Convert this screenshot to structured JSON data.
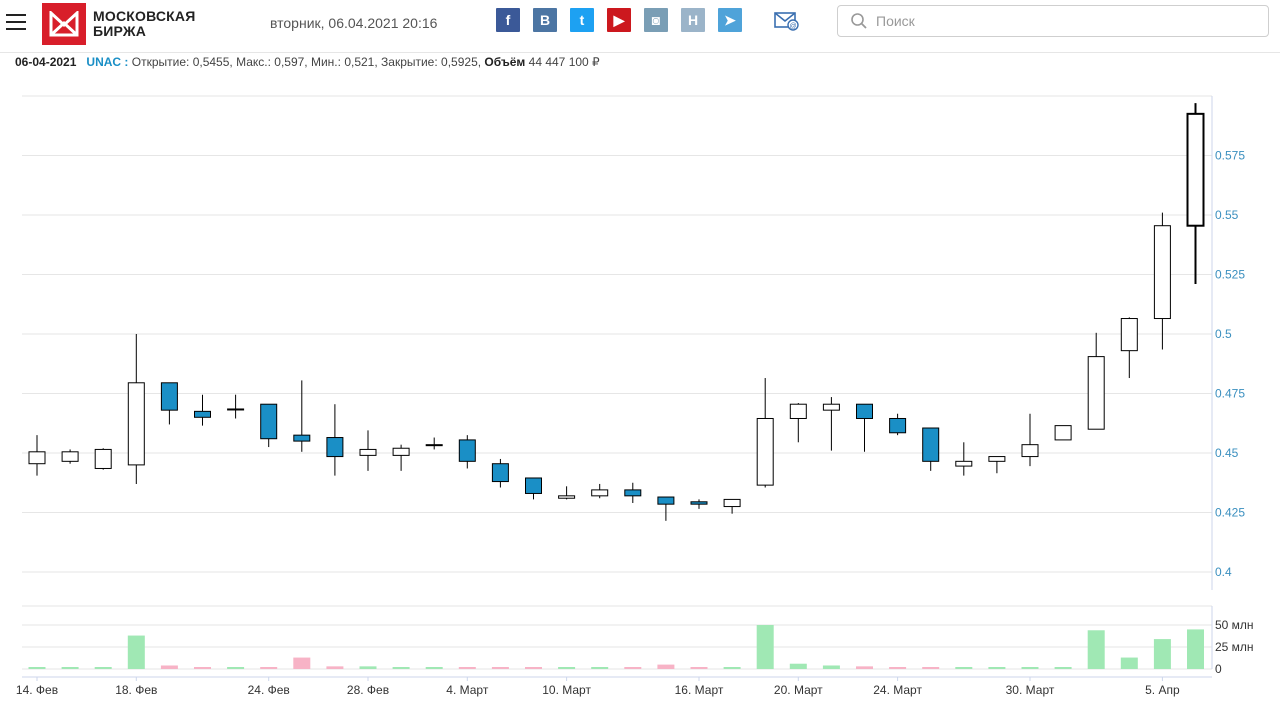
{
  "header": {
    "logo_line1": "МОСКОВСКАЯ",
    "logo_line2": "БИРЖА",
    "date": "вторник, 06.04.2021 20:16",
    "search_placeholder": "Поиск",
    "socials": [
      {
        "name": "facebook-icon",
        "glyph": "f",
        "color": "#3b5998"
      },
      {
        "name": "vkontakte-icon",
        "glyph": "B",
        "color": "#4c75a3"
      },
      {
        "name": "twitter-icon",
        "glyph": "t",
        "color": "#1da1f2"
      },
      {
        "name": "youtube-icon",
        "glyph": "▶",
        "color": "#cc181e"
      },
      {
        "name": "instagram-icon",
        "glyph": "◙",
        "color": "#7a9eb5"
      },
      {
        "name": "habr-icon",
        "glyph": "H",
        "color": "#9bb4c9"
      },
      {
        "name": "telegram-icon",
        "glyph": "➤",
        "color": "#4fa3d9"
      }
    ]
  },
  "info": {
    "date": "06-04-2021",
    "ticker": "UNAC :",
    "open_label": "Открытие:",
    "open": "0,5455",
    "high_label": "Макс.:",
    "high": "0,597",
    "low_label": "Мин.:",
    "low": "0,521",
    "close_label": "Закрытие:",
    "close": "0,5925",
    "volume_label": "Объём",
    "volume": "44 447 100 ₽"
  },
  "chart_data": {
    "type": "candlestick",
    "y_ticks": [
      "0.4",
      "0.425",
      "0.45",
      "0.475",
      "0.5",
      "0.525",
      "0.55",
      "0.575"
    ],
    "ylim": [
      0.4,
      0.6
    ],
    "volume_ticks": [
      "0",
      "25 млн",
      "50 млн"
    ],
    "volume_ylim": [
      0,
      60
    ],
    "x_labels": [
      {
        "label": "14. Фев",
        "index": 0
      },
      {
        "label": "18. Фев",
        "index": 3
      },
      {
        "label": "24. Фев",
        "index": 7
      },
      {
        "label": "28. Фев",
        "index": 10
      },
      {
        "label": "4. Март",
        "index": 13
      },
      {
        "label": "10. Март",
        "index": 16
      },
      {
        "label": "16. Март",
        "index": 20
      },
      {
        "label": "20. Март",
        "index": 23
      },
      {
        "label": "24. Март",
        "index": 26
      },
      {
        "label": "30. Март",
        "index": 30
      },
      {
        "label": "5. Апр",
        "index": 34
      }
    ],
    "up_color": "#ffffff",
    "down_color": "#1a8fc6",
    "volume_up_color": "#a0e8b4",
    "volume_down_color": "#f7b3c6",
    "candles": [
      {
        "o": 0.4455,
        "h": 0.4575,
        "l": 0.4405,
        "c": 0.4505,
        "v": 1
      },
      {
        "o": 0.4465,
        "h": 0.4515,
        "l": 0.4455,
        "c": 0.4505,
        "v": 1
      },
      {
        "o": 0.4435,
        "h": 0.452,
        "l": 0.443,
        "c": 0.4515,
        "v": 1
      },
      {
        "o": 0.445,
        "h": 0.5,
        "l": 0.437,
        "c": 0.4795,
        "v": 38
      },
      {
        "o": 0.4795,
        "h": 0.4795,
        "l": 0.462,
        "c": 0.468,
        "v": 4
      },
      {
        "o": 0.4675,
        "h": 0.4745,
        "l": 0.4615,
        "c": 0.465,
        "v": 1
      },
      {
        "o": 0.4685,
        "h": 0.4745,
        "l": 0.4645,
        "c": 0.4685,
        "v": 1
      },
      {
        "o": 0.4705,
        "h": 0.4705,
        "l": 0.4525,
        "c": 0.456,
        "v": 0
      },
      {
        "o": 0.4575,
        "h": 0.4805,
        "l": 0.4505,
        "c": 0.455,
        "v": 13
      },
      {
        "o": 0.4565,
        "h": 0.4705,
        "l": 0.4405,
        "c": 0.4485,
        "v": 3
      },
      {
        "o": 0.449,
        "h": 0.4595,
        "l": 0.4425,
        "c": 0.4515,
        "v": 3
      },
      {
        "o": 0.449,
        "h": 0.4535,
        "l": 0.4425,
        "c": 0.452,
        "v": 2
      },
      {
        "o": 0.4535,
        "h": 0.4565,
        "l": 0.4515,
        "c": 0.4535,
        "v": 0
      },
      {
        "o": 0.4555,
        "h": 0.4575,
        "l": 0.4435,
        "c": 0.4465,
        "v": 1
      },
      {
        "o": 0.4455,
        "h": 0.4475,
        "l": 0.4355,
        "c": 0.438,
        "v": 1
      },
      {
        "o": 0.4395,
        "h": 0.4395,
        "l": 0.4305,
        "c": 0.433,
        "v": 1
      },
      {
        "o": 0.431,
        "h": 0.436,
        "l": 0.4305,
        "c": 0.432,
        "v": 0
      },
      {
        "o": 0.432,
        "h": 0.437,
        "l": 0.431,
        "c": 0.4345,
        "v": 1
      },
      {
        "o": 0.4345,
        "h": 0.4375,
        "l": 0.429,
        "c": 0.432,
        "v": 1
      },
      {
        "o": 0.4315,
        "h": 0.4315,
        "l": 0.4215,
        "c": 0.4285,
        "v": 5
      },
      {
        "o": 0.4295,
        "h": 0.4305,
        "l": 0.4265,
        "c": 0.4285,
        "v": 1
      },
      {
        "o": 0.4275,
        "h": 0.4305,
        "l": 0.4245,
        "c": 0.4305,
        "v": 1
      },
      {
        "o": 0.4365,
        "h": 0.4815,
        "l": 0.4355,
        "c": 0.4645,
        "v": 50
      },
      {
        "o": 0.4645,
        "h": 0.471,
        "l": 0.4545,
        "c": 0.4705,
        "v": 6
      },
      {
        "o": 0.468,
        "h": 0.4735,
        "l": 0.451,
        "c": 0.4705,
        "v": 4
      },
      {
        "o": 0.4705,
        "h": 0.4705,
        "l": 0.4505,
        "c": 0.4645,
        "v": 3
      },
      {
        "o": 0.4645,
        "h": 0.4665,
        "l": 0.4575,
        "c": 0.4585,
        "v": 1
      },
      {
        "o": 0.4605,
        "h": 0.4605,
        "l": 0.4425,
        "c": 0.4465,
        "v": 1
      },
      {
        "o": 0.4445,
        "h": 0.4545,
        "l": 0.4405,
        "c": 0.4465,
        "v": 2
      },
      {
        "o": 0.4465,
        "h": 0.4485,
        "l": 0.4415,
        "c": 0.4485,
        "v": 1
      },
      {
        "o": 0.4485,
        "h": 0.4665,
        "l": 0.4445,
        "c": 0.4535,
        "v": 2
      },
      {
        "o": 0.4555,
        "h": 0.4615,
        "l": 0.4555,
        "c": 0.4615,
        "v": 1
      },
      {
        "o": 0.46,
        "h": 0.5005,
        "l": 0.46,
        "c": 0.4905,
        "v": 44
      },
      {
        "o": 0.493,
        "h": 0.507,
        "l": 0.4815,
        "c": 0.5065,
        "v": 13
      },
      {
        "o": 0.5065,
        "h": 0.551,
        "l": 0.4935,
        "c": 0.5455,
        "v": 34
      },
      {
        "o": 0.5455,
        "h": 0.597,
        "l": 0.521,
        "c": 0.5925,
        "v": 45,
        "highlight": true
      }
    ]
  }
}
